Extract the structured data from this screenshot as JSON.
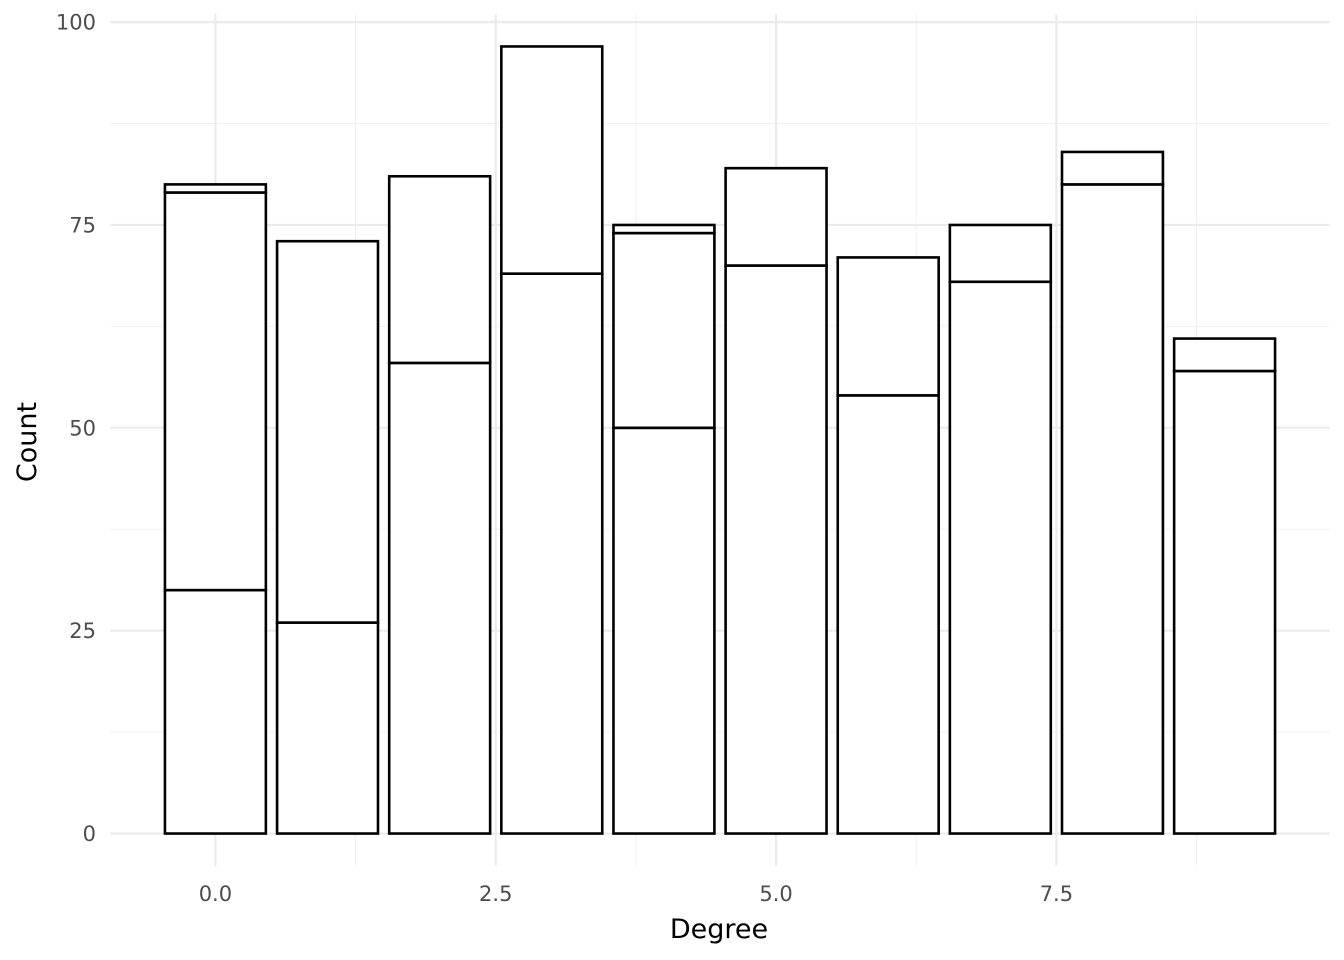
{
  "chart_data": {
    "type": "bar",
    "stacked": true,
    "title": "",
    "xlabel": "Degree",
    "ylabel": "Count",
    "x": [
      0,
      1,
      2,
      3,
      4,
      5,
      6,
      7,
      8,
      9
    ],
    "stack_boundaries": [
      [
        30,
        79,
        80
      ],
      [
        26,
        73
      ],
      [
        58,
        81
      ],
      [
        69,
        97
      ],
      [
        50,
        74,
        75
      ],
      [
        70,
        82
      ],
      [
        54,
        71
      ],
      [
        68,
        75
      ],
      [
        80,
        84
      ],
      [
        57,
        61
      ]
    ],
    "totals": [
      80,
      73,
      81,
      97,
      75,
      82,
      71,
      75,
      84,
      61
    ],
    "xlim": [
      -0.94,
      9.94
    ],
    "ylim": [
      -4,
      101
    ],
    "x_ticks": [
      {
        "value": 0,
        "label": "0.0"
      },
      {
        "value": 2.5,
        "label": "2.5"
      },
      {
        "value": 5,
        "label": "5.0"
      },
      {
        "value": 7.5,
        "label": "7.5"
      }
    ],
    "y_ticks": [
      {
        "value": 0,
        "label": "0"
      },
      {
        "value": 25,
        "label": "25"
      },
      {
        "value": 50,
        "label": "50"
      },
      {
        "value": 75,
        "label": "75"
      },
      {
        "value": 100,
        "label": "100"
      }
    ],
    "grid": true,
    "bar_fill": "#ffffff",
    "bar_stroke": "#000000"
  }
}
